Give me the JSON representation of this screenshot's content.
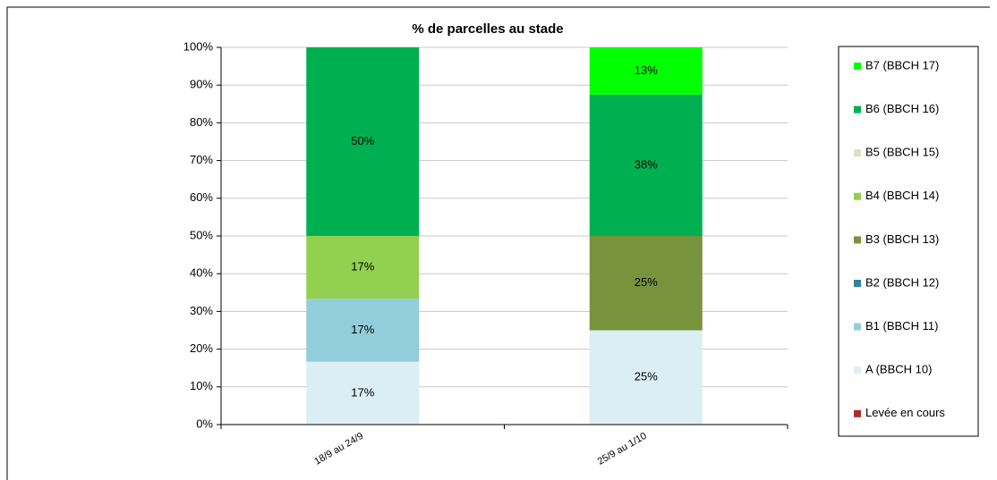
{
  "chart_data": {
    "type": "stacked_bar",
    "title": "% de parcelles au stade",
    "categories": [
      "18/9 au 24/9",
      "25/9 au 1/10"
    ],
    "series": [
      {
        "name": "Levée en cours",
        "color": "#a5302c",
        "values": [
          0,
          0
        ],
        "value_labels": [
          null,
          null
        ]
      },
      {
        "name": "A (BBCH 10)",
        "color": "#dbeef4",
        "values": [
          16.67,
          25
        ],
        "value_labels": [
          "17%",
          "25%"
        ]
      },
      {
        "name": "B1 (BBCH 11)",
        "color": "#92cddc",
        "values": [
          16.67,
          0
        ],
        "value_labels": [
          "17%",
          null
        ]
      },
      {
        "name": "B2 (BBCH 12)",
        "color": "#31849b",
        "values": [
          0,
          0
        ],
        "value_labels": [
          null,
          null
        ]
      },
      {
        "name": "B3 (BBCH 13)",
        "color": "#77933c",
        "values": [
          0,
          25
        ],
        "value_labels": [
          null,
          "25%"
        ]
      },
      {
        "name": "B4 (BBCH 14)",
        "color": "#92d050",
        "values": [
          16.67,
          0
        ],
        "value_labels": [
          "17%",
          null
        ]
      },
      {
        "name": "B5 (BBCH 15)",
        "color": "#d7e4bd",
        "values": [
          0,
          0
        ],
        "value_labels": [
          null,
          null
        ]
      },
      {
        "name": "B6 (BBCH 16)",
        "color": "#00b050",
        "values": [
          50,
          37.5
        ],
        "value_labels": [
          "50%",
          "38%"
        ]
      },
      {
        "name": "B7 (BBCH 17)",
        "color": "#00ff00",
        "values": [
          0,
          12.5
        ],
        "value_labels": [
          null,
          "13%"
        ]
      }
    ],
    "ylim": [
      0,
      100
    ],
    "yticks": [
      {
        "value": 0,
        "label": "0%"
      },
      {
        "value": 10,
        "label": "10%"
      },
      {
        "value": 20,
        "label": "20%"
      },
      {
        "value": 30,
        "label": "30%"
      },
      {
        "value": 40,
        "label": "40%"
      },
      {
        "value": 50,
        "label": "50%"
      },
      {
        "value": 60,
        "label": "60%"
      },
      {
        "value": 70,
        "label": "70%"
      },
      {
        "value": 80,
        "label": "80%"
      },
      {
        "value": 90,
        "label": "90%"
      },
      {
        "value": 100,
        "label": "100%"
      }
    ],
    "grid": true,
    "legend": "right"
  }
}
